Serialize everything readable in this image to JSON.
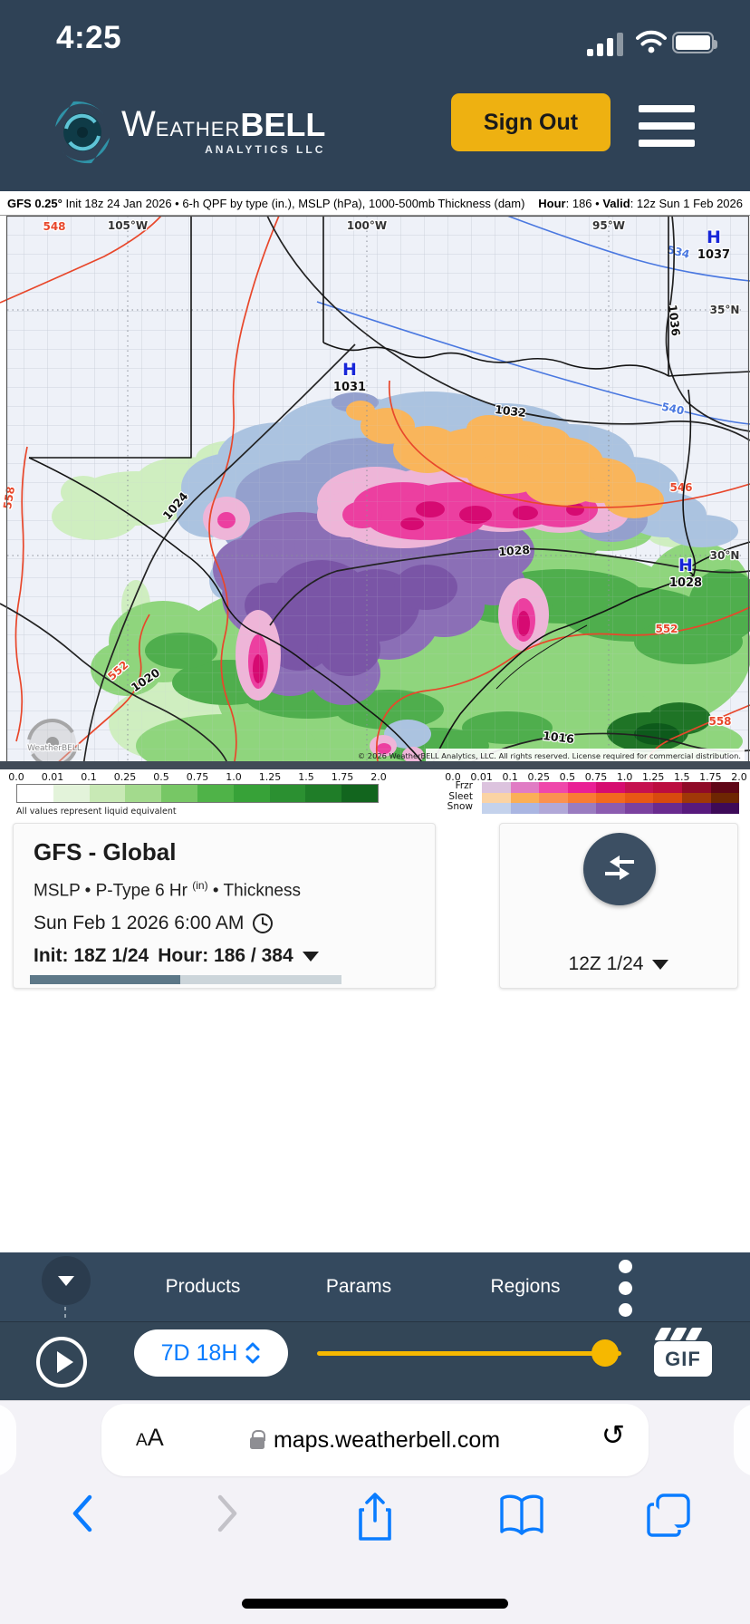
{
  "status_bar": {
    "time": "4:25"
  },
  "header": {
    "brand_w": "W",
    "brand_eather": "EATHER",
    "brand_bell": "BELL",
    "brand_sub": "ANALYTICS LLC",
    "sign_out": "Sign Out"
  },
  "map_bar": {
    "model_bold": "GFS 0.25°",
    "left_rest": " Init 18z 24 Jan 2026 • 6-h QPF by type (in.), MSLP (hPa), 1000-500mb Thickness (dam)",
    "hour_bold": "Hour",
    "hour_rest": ": 186 • ",
    "valid_bold": "Valid",
    "valid_rest": ": 12z Sun 1 Feb 2026"
  },
  "map": {
    "lon_labels": [
      "105°W",
      "100°W",
      "95°W"
    ],
    "lat_labels": [
      "35°N",
      "30°N"
    ],
    "highs": [
      {
        "letter": "H",
        "value": "1031"
      },
      {
        "letter": "H",
        "value": "1037"
      },
      {
        "letter": "H",
        "value": "1028"
      }
    ],
    "isobar_labels": [
      "1032",
      "1036",
      "1028",
      "1024",
      "1020",
      "1016"
    ],
    "thickness_labels": [
      "548",
      "558",
      "546",
      "552",
      "558",
      "552"
    ],
    "blue_labels": [
      "534",
      "540"
    ],
    "watermark": "WeatherBELL",
    "copyright": "© 2026 WeatherBELL Analytics, LLC. All rights reserved. License required for commercial distribution."
  },
  "scales": {
    "ticks": [
      "0.0",
      "0.01",
      "0.1",
      "0.25",
      "0.5",
      "0.75",
      "1.0",
      "1.25",
      "1.5",
      "1.75",
      "2.0"
    ],
    "left_note": "All values represent liquid equivalent",
    "left_colors": [
      "#ffffff",
      "#e3f3da",
      "#c8e9b5",
      "#a3da8d",
      "#77c765",
      "#4fb348",
      "#37a238",
      "#2b9031",
      "#1f7d28",
      "#12651e"
    ],
    "ptype_rows": [
      {
        "label": "Frzr",
        "colors": [
          "#dcc3de",
          "#e07cc4",
          "#ef47ab",
          "#e92095",
          "#d60d70",
          "#c51250",
          "#bb0d3f",
          "#8f0b28",
          "#5f0617"
        ]
      },
      {
        "label": "Sleet",
        "colors": [
          "#fbd3a4",
          "#fbaf56",
          "#fb9150",
          "#f97b33",
          "#f2691f",
          "#e85815",
          "#d84a0e",
          "#a03807",
          "#6e2602"
        ]
      },
      {
        "label": "Snow",
        "colors": [
          "#c4d2ec",
          "#aab6e2",
          "#b1a8d8",
          "#9a7cc0",
          "#8c5cb0",
          "#7b419f",
          "#6a2b8f",
          "#581a7d",
          "#3d0a58"
        ]
      }
    ]
  },
  "model_card": {
    "title": "GFS - Global",
    "params_pre": "MSLP • P-Type 6 Hr ",
    "params_sup": "(in)",
    "params_post": " • Thickness",
    "valid_time": "Sun Feb 1 2026 6:00 AM",
    "init_text": "Init: 18Z 1/24",
    "hour_text": "Hour: 186 / 384",
    "progress_pct": 48.4
  },
  "compare_card": {
    "run_label": "12Z 1/24"
  },
  "nav": {
    "items": [
      "Products",
      "Params",
      "Regions"
    ]
  },
  "player": {
    "range_label": "7D 18H",
    "gif_label": "GIF",
    "slider_pct": 94.5
  },
  "browser": {
    "reader": "AA",
    "url": "maps.weatherbell.com"
  },
  "colors": {
    "navy": "#2f4256",
    "accent_yellow": "#eeb111",
    "slider_gold": "#f6b800",
    "ios_blue": "#007aff",
    "progress_fill": "#5d7888"
  }
}
